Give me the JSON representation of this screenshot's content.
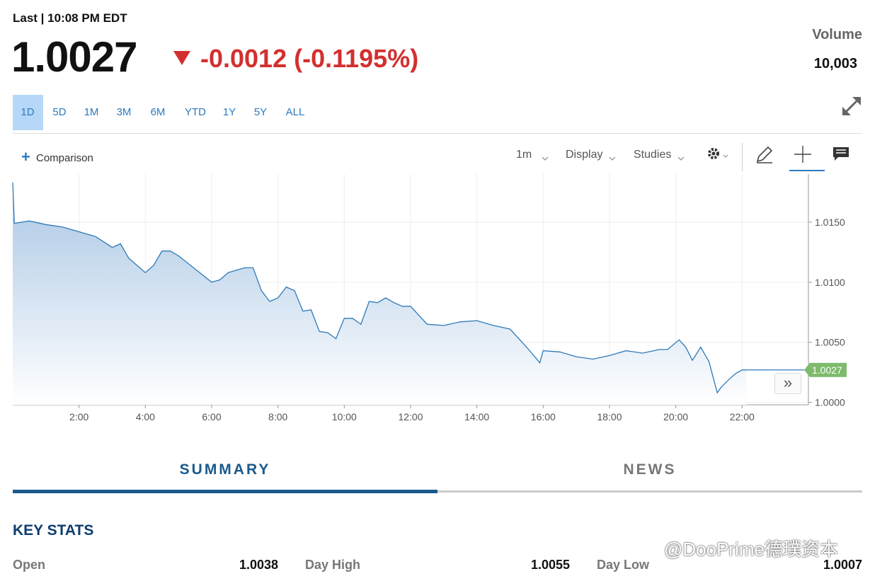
{
  "quote": {
    "last_time": "Last | 10:08 PM EDT",
    "price": "1.0027",
    "change": "-0.0012 (-0.1195%)",
    "volume_label": "Volume",
    "volume": "10,003"
  },
  "ranges": [
    "1D",
    "5D",
    "1M",
    "3M",
    "6M",
    "YTD",
    "1Y",
    "5Y",
    "ALL"
  ],
  "toolbar": {
    "comparison": "Comparison",
    "interval": "1m",
    "display": "Display",
    "studies": "Studies"
  },
  "chart_data": {
    "type": "area",
    "color": "#2f7ab8",
    "grid": true,
    "x": [
      0,
      0.05,
      0.5,
      1,
      1.5,
      2,
      2.5,
      3,
      3.25,
      3.5,
      4,
      4.25,
      4.5,
      4.75,
      5,
      5.5,
      6,
      6.25,
      6.5,
      6.75,
      7,
      7.25,
      7.5,
      7.75,
      8,
      8.25,
      8.5,
      8.75,
      9,
      9.25,
      9.5,
      9.75,
      10,
      10.25,
      10.5,
      10.75,
      11,
      11.25,
      11.5,
      11.75,
      12,
      12.5,
      13,
      13.5,
      14,
      14.5,
      15,
      15.5,
      15.9,
      16,
      16.5,
      17,
      17.5,
      18,
      18.5,
      19,
      19.5,
      19.75,
      20.1,
      20.3,
      20.5,
      20.75,
      21,
      21.25,
      21.35,
      21.6,
      21.8,
      22,
      22.13
    ],
    "values": [
      1.0183,
      1.0149,
      1.0151,
      1.0148,
      1.0146,
      1.0142,
      1.0138,
      1.0129,
      1.0132,
      1.012,
      1.0108,
      1.0114,
      1.0126,
      1.0126,
      1.0122,
      1.0111,
      1.01,
      1.0102,
      1.0108,
      1.011,
      1.0112,
      1.0112,
      1.0093,
      1.0084,
      1.0087,
      1.0096,
      1.0093,
      1.0076,
      1.0077,
      1.0059,
      1.0058,
      1.0053,
      1.007,
      1.007,
      1.0065,
      1.0084,
      1.0083,
      1.0087,
      1.0083,
      1.008,
      1.008,
      1.0065,
      1.0064,
      1.0067,
      1.0068,
      1.0064,
      1.0061,
      1.0046,
      1.0033,
      1.0043,
      1.0042,
      1.0038,
      1.0036,
      1.0039,
      1.0043,
      1.0041,
      1.0044,
      1.0044,
      1.0052,
      1.0046,
      1.0035,
      1.0046,
      1.0034,
      1.0008,
      1.0012,
      1.0019,
      1.0024,
      1.0027,
      1.0027
    ],
    "xlim": [
      0,
      24
    ],
    "xticks": [
      {
        "value": 2,
        "label": "2:00"
      },
      {
        "value": 4,
        "label": "4:00"
      },
      {
        "value": 6,
        "label": "6:00"
      },
      {
        "value": 8,
        "label": "8:00"
      },
      {
        "value": 10,
        "label": "10:00"
      },
      {
        "value": 12,
        "label": "12:00"
      },
      {
        "value": 14,
        "label": "14:00"
      },
      {
        "value": 16,
        "label": "16:00"
      },
      {
        "value": 18,
        "label": "18:00"
      },
      {
        "value": 20,
        "label": "20:00"
      },
      {
        "value": 22,
        "label": "22:00"
      }
    ],
    "ylim": [
      0.9998,
      1.019
    ],
    "yticks": [
      {
        "value": 1,
        "label": "1.0000"
      },
      {
        "value": 1.005,
        "label": "1.0050"
      },
      {
        "value": 1.01,
        "label": "1.0100"
      },
      {
        "value": 1.015,
        "label": "1.0150"
      }
    ]
  },
  "tabs": [
    "SUMMARY",
    "NEWS"
  ],
  "key_stats": {
    "title": "KEY STATS",
    "rows": [
      [
        "Open",
        "1.0038"
      ],
      [
        "Day High",
        "1.0055"
      ],
      [
        "Day Low",
        "1.0007"
      ]
    ]
  },
  "watermark": "@DooPrime德璞资本"
}
